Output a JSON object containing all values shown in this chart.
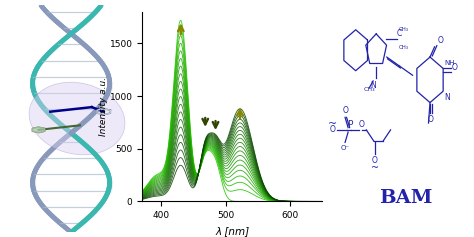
{
  "background_color": "#ffffff",
  "xlim": [
    370,
    650
  ],
  "ylim": [
    0,
    1800
  ],
  "xticks": [
    400,
    500,
    600
  ],
  "yticks": [
    0,
    500,
    1000,
    1500
  ],
  "xlabel": "λ [nm]",
  "ylabel": "Intensity a.u.",
  "n_curves": 20,
  "arrow_up_color": "#888800",
  "arrow_down_color": "#334400",
  "bam_color": "#2222aa",
  "bam_fontsize": 14,
  "struct_color": "#2222aa",
  "dna_teal": "#3ab8b0",
  "dna_gray": "#8899bb",
  "dna_ribbon": "#aabbcc"
}
